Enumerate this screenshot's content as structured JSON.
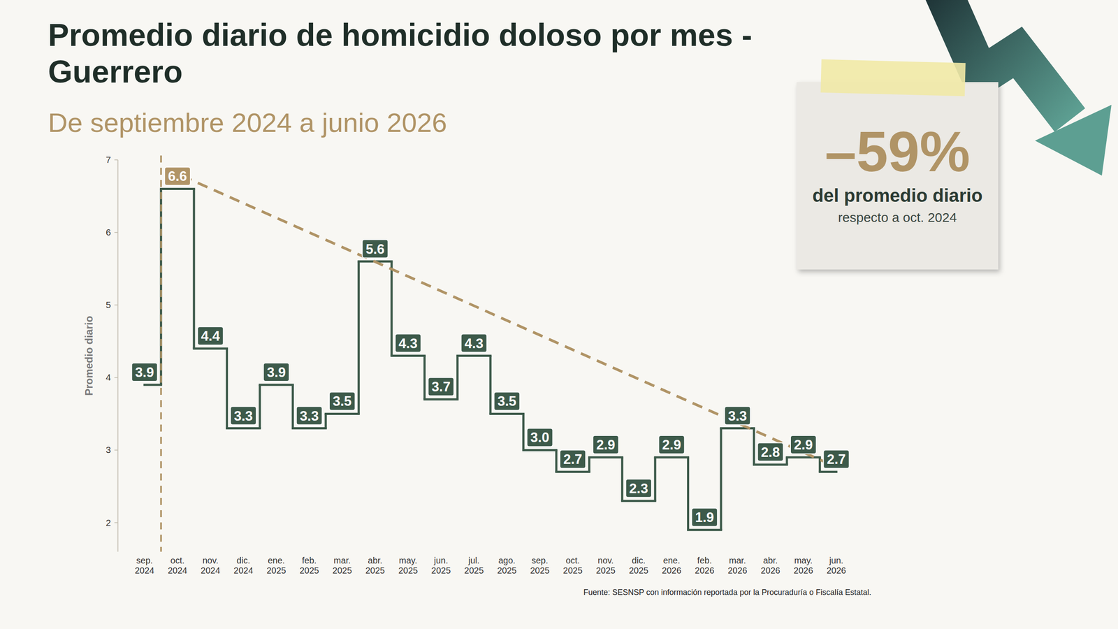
{
  "chart_data": {
    "type": "line",
    "line_style": "step",
    "title": "Promedio diario de homicidio doloso por mes - Guerrero",
    "subtitle": "De septiembre 2024 a junio 2026",
    "y_label": "Promedio diario",
    "categories": [
      "sep. 2024",
      "oct. 2024",
      "nov. 2024",
      "dic. 2024",
      "ene. 2025",
      "feb. 2025",
      "mar. 2025",
      "abr. 2025",
      "may. 2025",
      "jun. 2025",
      "jul. 2025",
      "ago. 2025",
      "sep. 2025",
      "oct. 2025",
      "nov. 2025",
      "dic. 2025",
      "ene. 2026",
      "feb. 2026",
      "mar. 2026",
      "abr. 2026",
      "may. 2026",
      "jun. 2026"
    ],
    "values": [
      3.9,
      6.6,
      4.4,
      3.3,
      3.9,
      3.3,
      3.5,
      5.6,
      4.3,
      3.7,
      4.3,
      3.5,
      3.0,
      2.7,
      2.9,
      2.3,
      2.9,
      1.9,
      3.3,
      2.8,
      2.9,
      2.7
    ],
    "value_labels": [
      "3.9",
      "6.6",
      "4.4",
      "3.3",
      "3.9",
      "3.3",
      "3.5",
      "5.6",
      "4.3",
      "3.7",
      "4.3",
      "3.5",
      "3.0",
      "2.7",
      "2.9",
      "2.3",
      "2.9",
      "1.9",
      "3.3",
      "2.8",
      "2.9",
      "2.7"
    ],
    "color": "#3d5a4a",
    "ylim": [
      1.6,
      7
    ],
    "yticks": [
      2,
      3,
      4,
      5,
      6,
      7
    ],
    "grid": false,
    "data_labels": true,
    "annotations": [
      "–59%",
      "del promedio diario",
      "respecto a oct. 2024"
    ],
    "source": "Fuente: SESNSP con información reportada por la Procuraduría o Fiscalía Estatal."
  }
}
